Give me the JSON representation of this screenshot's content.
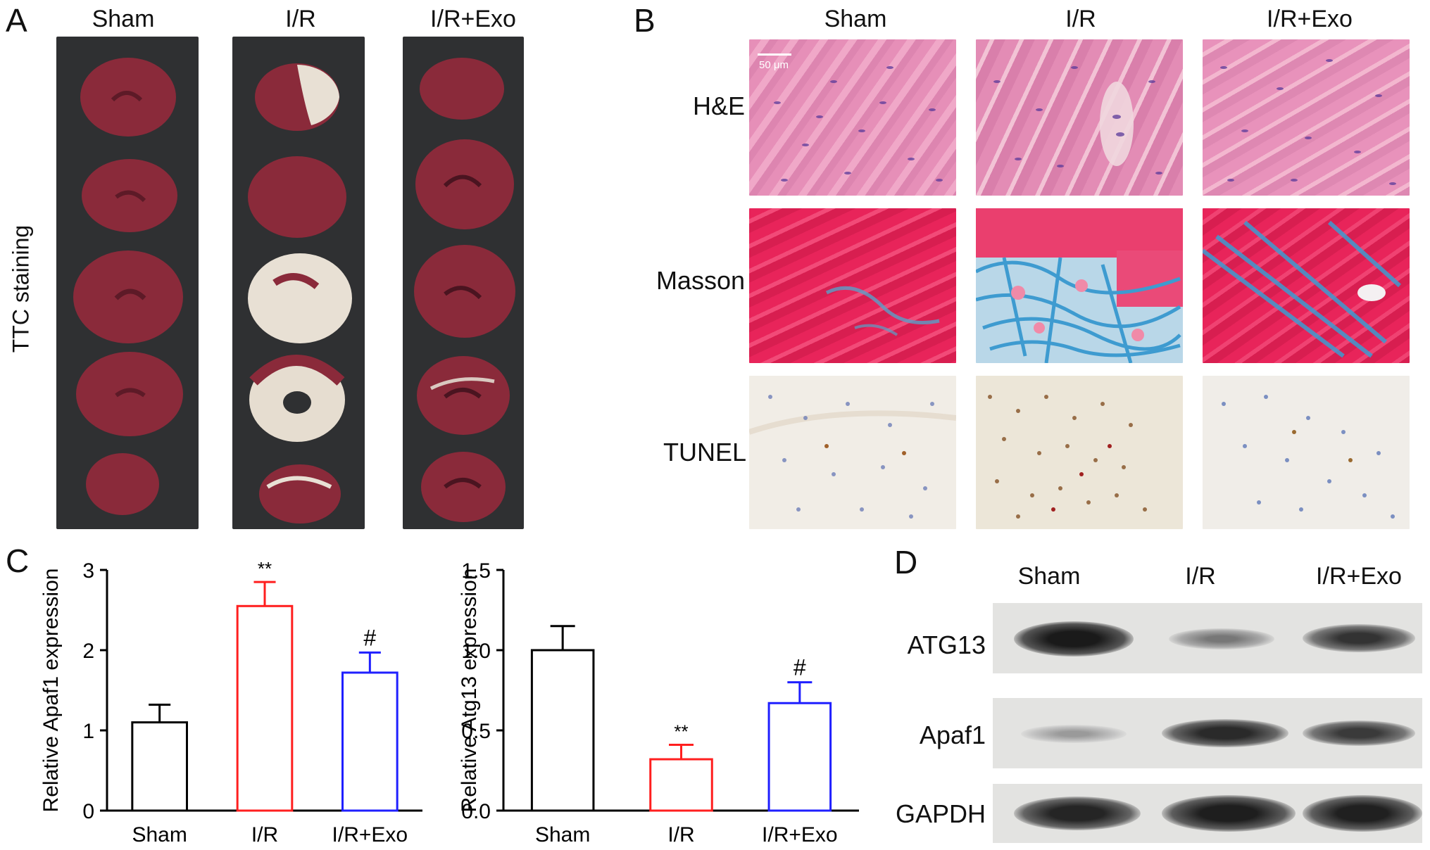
{
  "panels": {
    "A": {
      "letter": "A",
      "groups": [
        "Sham",
        "I/R",
        "I/R+Exo"
      ],
      "ylabel": "TTC staining"
    },
    "B": {
      "letter": "B",
      "groups": [
        "Sham",
        "I/R",
        "I/R+Exo"
      ],
      "rows": [
        "H&E",
        "Masson",
        "TUNEL"
      ],
      "scale_bar": "50 μm"
    },
    "C": {
      "letter": "C"
    },
    "D": {
      "letter": "D",
      "groups": [
        "Sham",
        "I/R",
        "I/R+Exo"
      ],
      "rows": [
        "ATG13",
        "Apaf1",
        "GAPDH"
      ]
    }
  },
  "chart_data": [
    {
      "type": "bar",
      "categories": [
        "Sham",
        "I/R",
        "I/R+Exo"
      ],
      "values": [
        1.1,
        2.55,
        1.72
      ],
      "errors": [
        0.22,
        0.3,
        0.25
      ],
      "significance": [
        "",
        "**",
        "#"
      ],
      "ylabel": "Relative Apaf1 expression",
      "ylim": [
        0,
        3
      ],
      "yticks": [
        0,
        1,
        2,
        3
      ],
      "ytick_labels": [
        "0",
        "1",
        "2",
        "3"
      ],
      "bar_colors": [
        "#000000",
        "#ff1f1f",
        "#1f1fff"
      ]
    },
    {
      "type": "bar",
      "categories": [
        "Sham",
        "I/R",
        "I/R+Exo"
      ],
      "values": [
        1.0,
        0.32,
        0.67
      ],
      "errors": [
        0.15,
        0.09,
        0.13
      ],
      "significance": [
        "",
        "**",
        "#"
      ],
      "ylabel": "Relative Atg13 expression",
      "ylim": [
        0,
        1.5
      ],
      "yticks": [
        0,
        0.5,
        1.0,
        1.5
      ],
      "ytick_labels": [
        "0.0",
        "0.5",
        "1.0",
        "1.5"
      ],
      "bar_colors": [
        "#000000",
        "#ff1f1f",
        "#1f1fff"
      ]
    }
  ]
}
